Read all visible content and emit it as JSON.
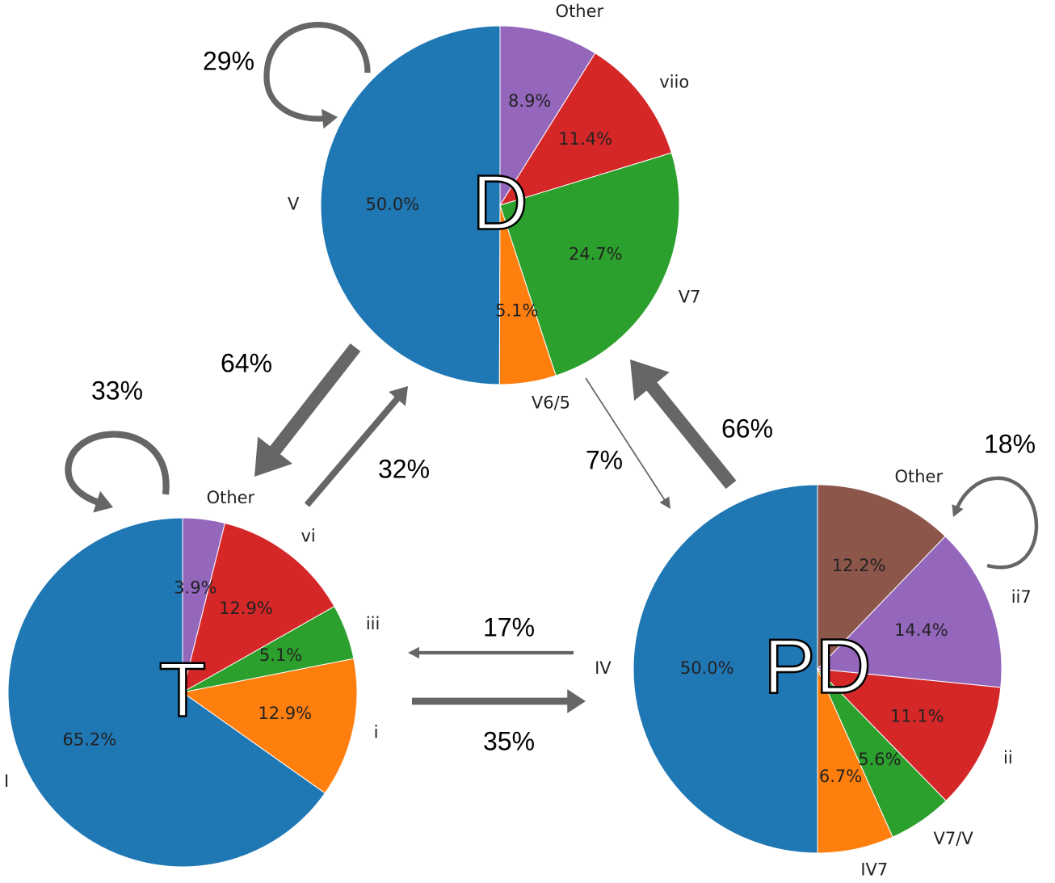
{
  "chart_data": [
    {
      "type": "pie",
      "title": "D",
      "categories": [
        "V",
        "V6/5",
        "V7",
        "viio",
        "Other"
      ],
      "values": [
        50.0,
        5.1,
        24.7,
        11.4,
        8.9
      ],
      "value_labels": [
        "50.0%",
        "5.1%",
        "24.7%",
        "11.4%",
        "8.9%"
      ],
      "colors": [
        "#1f77b4",
        "#ff7f0e",
        "#2ca02c",
        "#d62728",
        "#9467bd"
      ]
    },
    {
      "type": "pie",
      "title": "T",
      "categories": [
        "I",
        "i",
        "iii",
        "vi",
        "Other"
      ],
      "values": [
        65.2,
        12.9,
        5.1,
        12.9,
        3.9
      ],
      "value_labels": [
        "65.2%",
        "12.9%",
        "5.1%",
        "12.9%",
        "3.9%"
      ],
      "colors": [
        "#1f77b4",
        "#ff7f0e",
        "#2ca02c",
        "#d62728",
        "#9467bd"
      ]
    },
    {
      "type": "pie",
      "title": "PD",
      "categories": [
        "IV",
        "IV7",
        "V7/V",
        "ii",
        "ii7",
        "Other"
      ],
      "values": [
        50.0,
        6.7,
        5.6,
        11.1,
        14.4,
        12.2
      ],
      "value_labels": [
        "50.0%",
        "6.7%",
        "5.6%",
        "11.1%",
        "14.4%",
        "12.2%"
      ],
      "colors": [
        "#1f77b4",
        "#ff7f0e",
        "#2ca02c",
        "#d62728",
        "#9467bd",
        "#8c564b"
      ]
    }
  ],
  "transitions": {
    "from": [
      "D",
      "T",
      "PD",
      "D",
      "T",
      "D",
      "PD",
      "PD",
      "T"
    ],
    "to": [
      "D",
      "T",
      "PD",
      "T",
      "D",
      "PD",
      "D",
      "T",
      "PD"
    ],
    "values": [
      29,
      33,
      18,
      64,
      32,
      7,
      66,
      17,
      35
    ],
    "value_labels": [
      "29%",
      "33%",
      "18%",
      "64%",
      "32%",
      "7%",
      "66%",
      "17%",
      "35%"
    ],
    "color": "#666666"
  }
}
